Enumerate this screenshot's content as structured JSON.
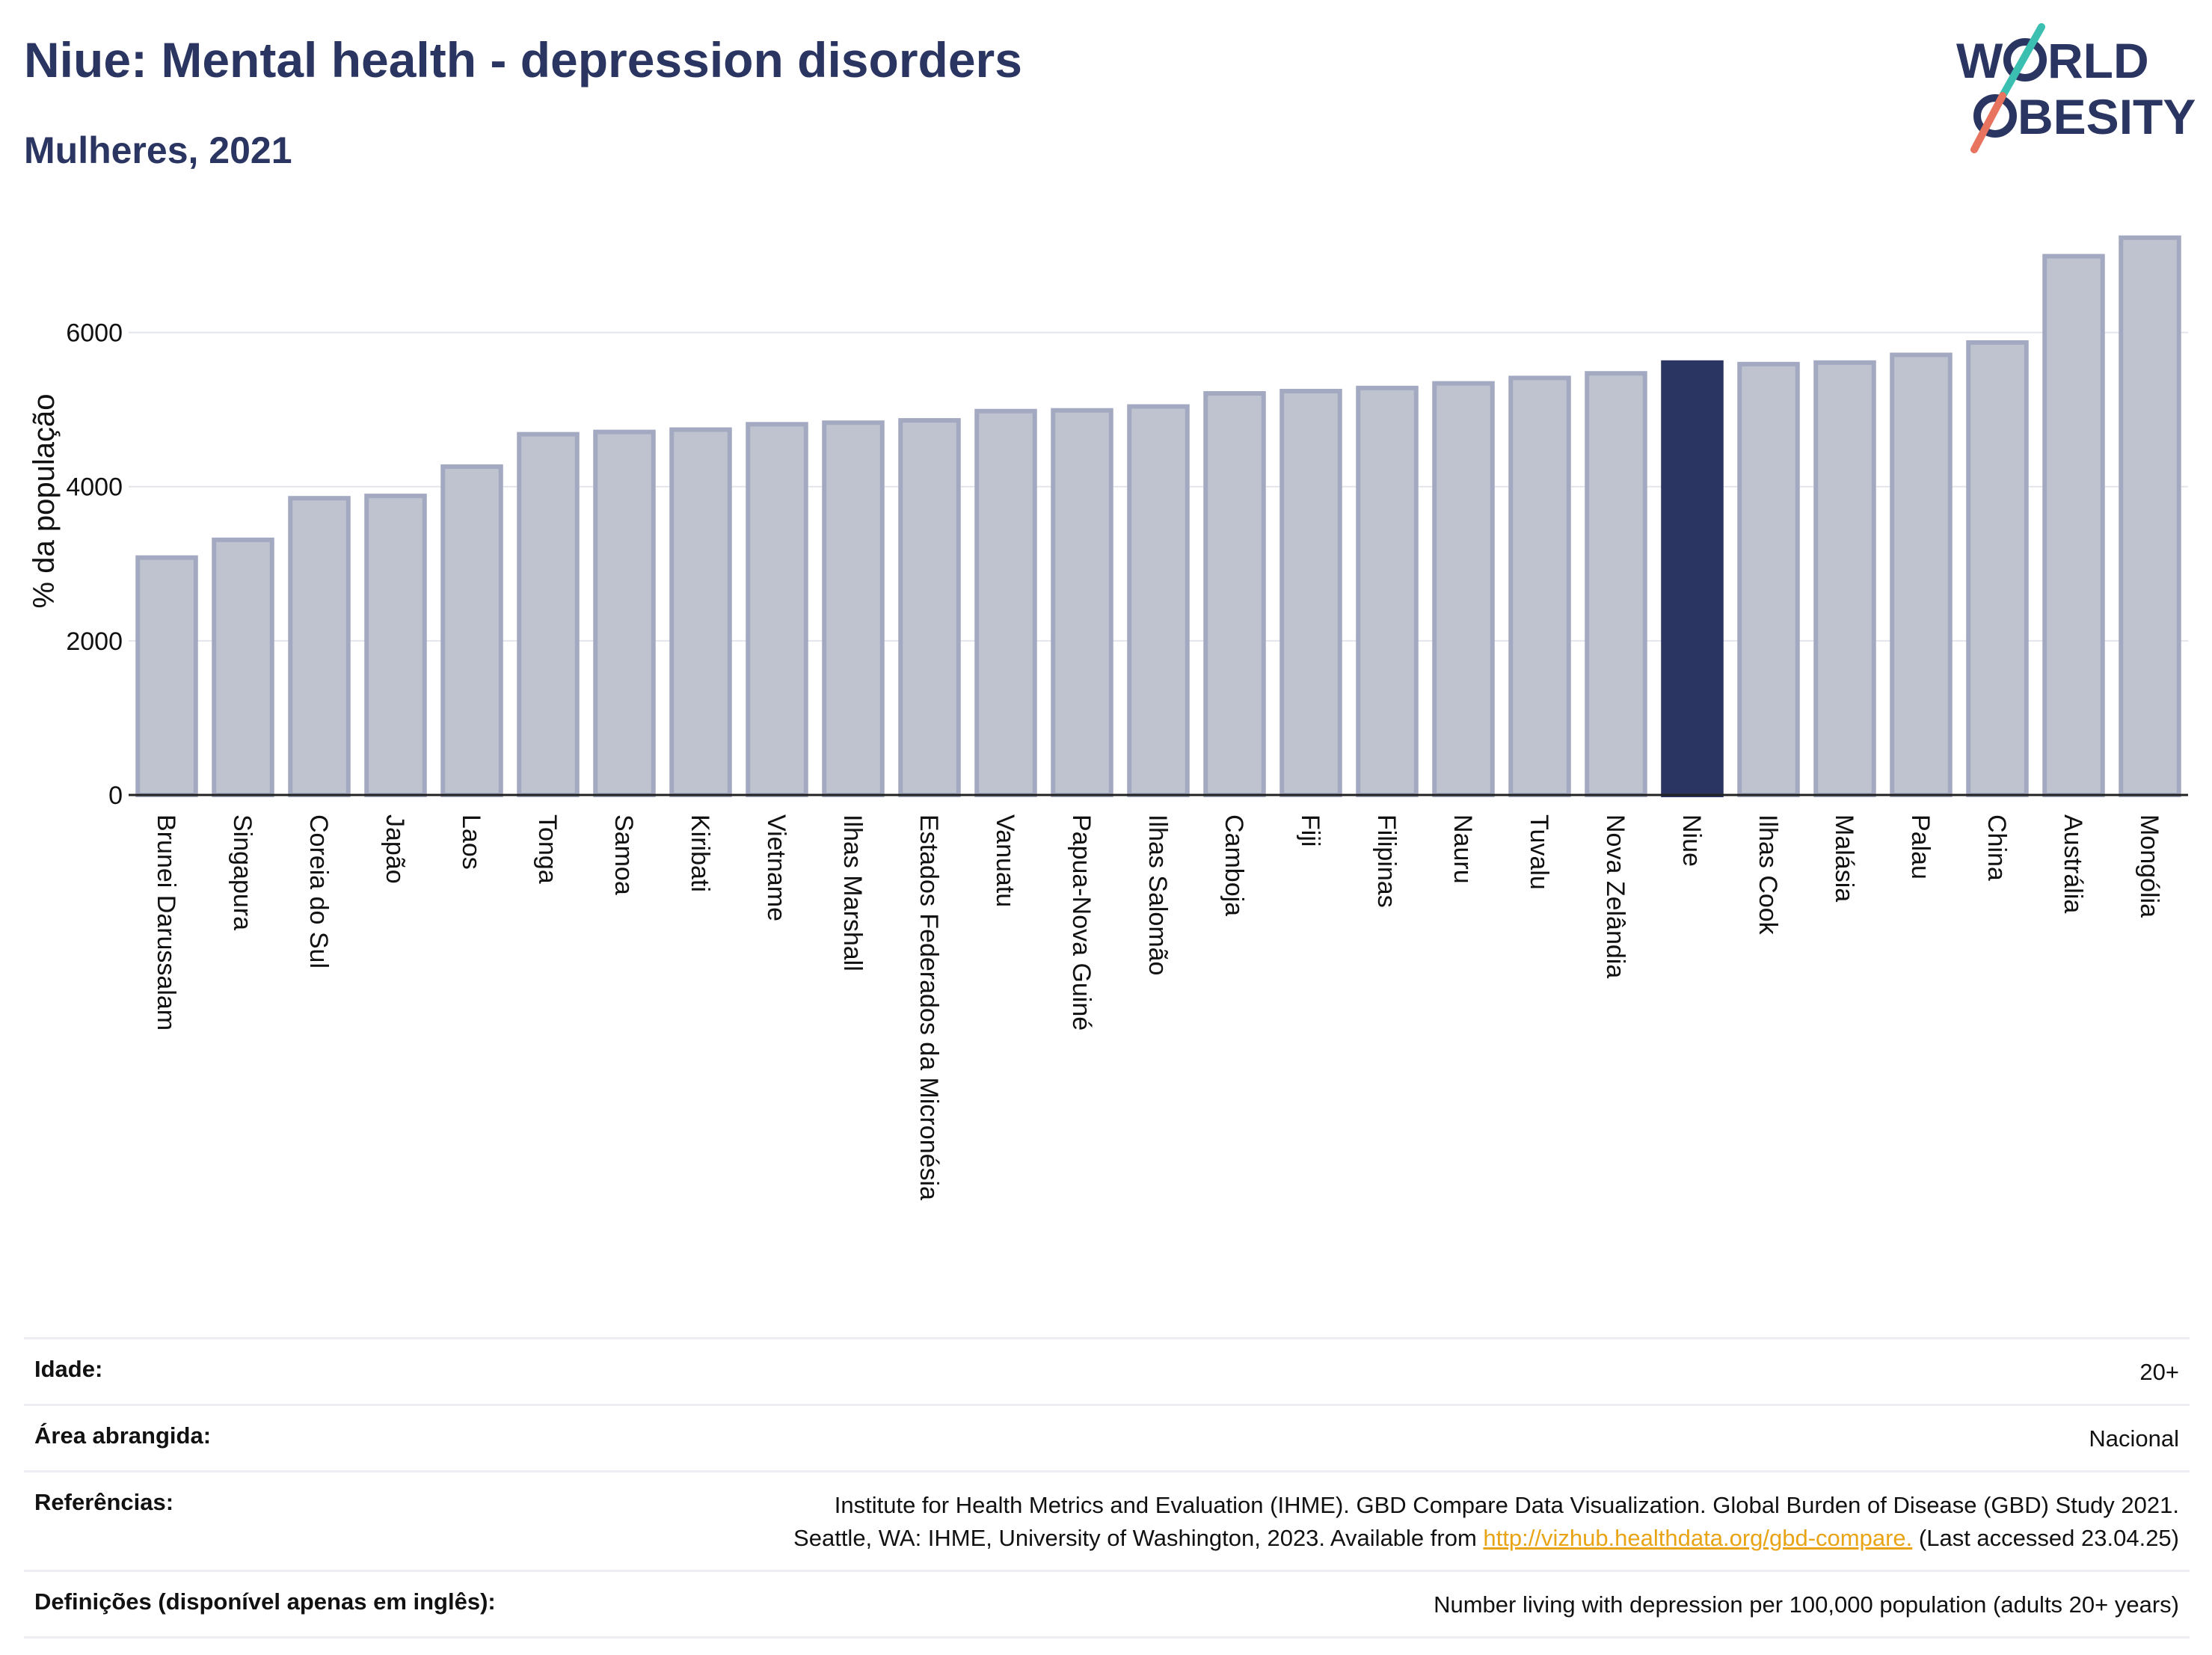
{
  "header": {
    "title": "Niue: Mental health - depression disorders",
    "subtitle": "Mulheres, 2021"
  },
  "logo": {
    "line1": "W",
    "line1b": "RLD",
    "line2": "BESITY",
    "accent_teal": "#3bbfb0",
    "accent_coral": "#e8735f"
  },
  "chart_data": {
    "type": "bar",
    "ylabel": "% da população",
    "xlabel": "",
    "ylim": [
      0,
      7500
    ],
    "yticks": [
      0,
      2000,
      4000,
      6000
    ],
    "grid": true,
    "highlight": "Niue",
    "bar_color": "#bfc3d0",
    "bar_edge_color": "#a3a9c1",
    "highlight_color": "#2a3561",
    "categories": [
      "Brunei Darussalam",
      "Singapura",
      "Coreia do Sul",
      "Japão",
      "Laos",
      "Tonga",
      "Samoa",
      "Kiribati",
      "Vietname",
      "Ilhas Marshall",
      "Estados Federados da Micronésia",
      "Vanuatu",
      "Papua-Nova Guiné",
      "Ilhas Salomão",
      "Camboja",
      "Fiji",
      "Filipinas",
      "Nauru",
      "Tuvalu",
      "Nova Zelândia",
      "Niue",
      "Ilhas Cook",
      "Malásia",
      "Palau",
      "China",
      "Austrália",
      "Mongólia"
    ],
    "values": [
      3080,
      3310,
      3850,
      3880,
      4260,
      4680,
      4710,
      4740,
      4810,
      4830,
      4860,
      4980,
      4990,
      5040,
      5210,
      5240,
      5280,
      5340,
      5410,
      5470,
      5610,
      5590,
      5610,
      5710,
      5870,
      6990,
      7230
    ]
  },
  "meta": {
    "rows": [
      {
        "label": "Idade:",
        "value": "20+"
      },
      {
        "label": "Área abrangida:",
        "value": "Nacional"
      }
    ],
    "references": {
      "label": "Referências:",
      "line1": "Institute for Health Metrics and Evaluation (IHME). GBD Compare Data Visualization. Global Burden of Disease (GBD) Study 2021.",
      "line2_before": "Seattle, WA: IHME, University of Washington, 2023. Available from ",
      "link": "http://vizhub.healthdata.org/gbd-compare.",
      "line2_after": " (Last accessed 23.04.25)"
    },
    "definitions": {
      "label": "Definições (disponível apenas em inglês):",
      "value": "Number living with depression per 100,000 population (adults 20+ years)"
    }
  }
}
